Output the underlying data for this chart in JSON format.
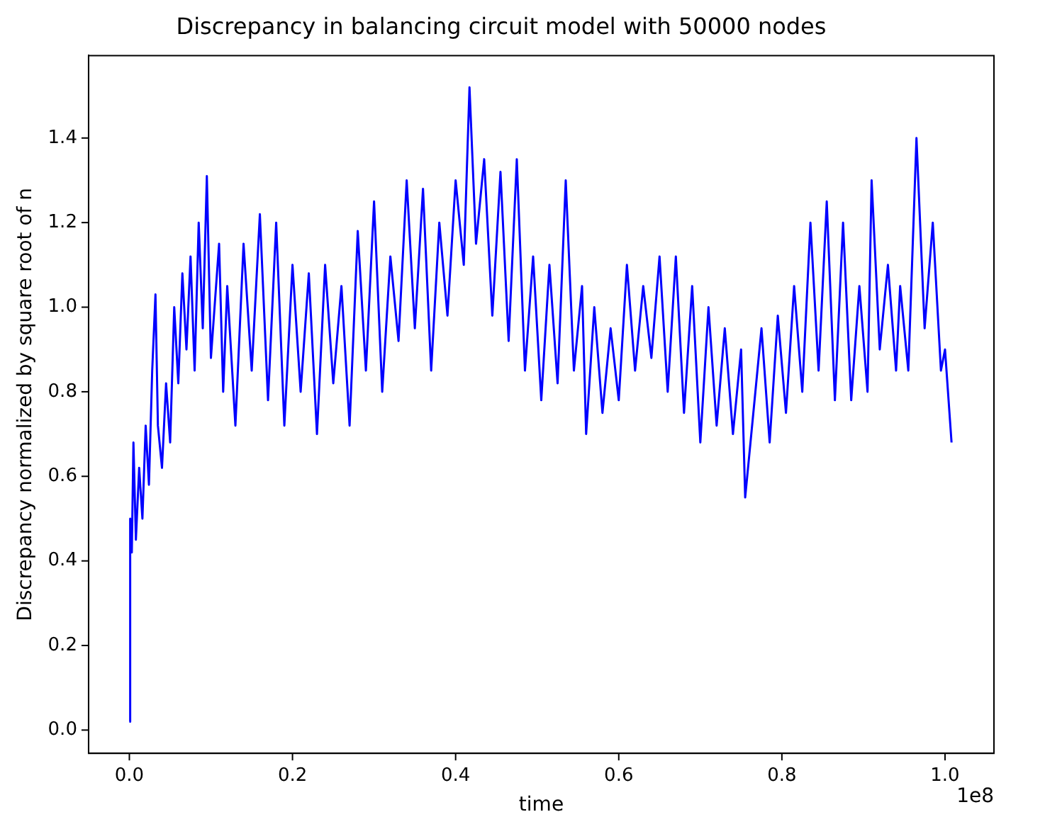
{
  "chart_data": {
    "type": "line",
    "title": "Discrepancy in balancing circuit model with 50000 nodes",
    "xlabel": "time",
    "ylabel": "Discrepancy normalized by square root of n",
    "annotations": [
      "1e8"
    ],
    "x": [
      0,
      0.001,
      0.003,
      0.005,
      0.008,
      0.012,
      0.016,
      0.02,
      0.024,
      0.028,
      0.032,
      0.035,
      0.04,
      0.045,
      0.05,
      0.055,
      0.06,
      0.065,
      0.07,
      0.075,
      0.08,
      0.085,
      0.09,
      0.095,
      0.1,
      0.11,
      0.115,
      0.12,
      0.13,
      0.14,
      0.15,
      0.16,
      0.17,
      0.18,
      0.19,
      0.2,
      0.21,
      0.22,
      0.23,
      0.24,
      0.25,
      0.26,
      0.27,
      0.28,
      0.29,
      0.3,
      0.31,
      0.32,
      0.33,
      0.34,
      0.35,
      0.36,
      0.37,
      0.38,
      0.39,
      0.4,
      0.41,
      0.417,
      0.425,
      0.435,
      0.445,
      0.455,
      0.465,
      0.475,
      0.485,
      0.495,
      0.505,
      0.515,
      0.525,
      0.535,
      0.545,
      0.555,
      0.56,
      0.57,
      0.58,
      0.59,
      0.6,
      0.61,
      0.62,
      0.63,
      0.64,
      0.65,
      0.66,
      0.67,
      0.68,
      0.69,
      0.7,
      0.71,
      0.72,
      0.73,
      0.74,
      0.75,
      0.755,
      0.765,
      0.775,
      0.785,
      0.795,
      0.805,
      0.815,
      0.825,
      0.835,
      0.845,
      0.855,
      0.865,
      0.875,
      0.885,
      0.895,
      0.905,
      0.91,
      0.92,
      0.93,
      0.94,
      0.945,
      0.955,
      0.965,
      0.975,
      0.985,
      0.995,
      1.0,
      1.008
    ],
    "series": [
      {
        "color": "#0000ff",
        "values": [
          0.02,
          0.5,
          0.42,
          0.68,
          0.45,
          0.62,
          0.5,
          0.72,
          0.58,
          0.85,
          1.03,
          0.72,
          0.62,
          0.82,
          0.68,
          1.0,
          0.82,
          1.08,
          0.9,
          1.12,
          0.85,
          1.2,
          0.95,
          1.31,
          0.88,
          1.15,
          0.8,
          1.05,
          0.72,
          1.15,
          0.85,
          1.22,
          0.78,
          1.2,
          0.72,
          1.1,
          0.8,
          1.08,
          0.7,
          1.1,
          0.82,
          1.05,
          0.72,
          1.18,
          0.85,
          1.25,
          0.8,
          1.12,
          0.92,
          1.3,
          0.95,
          1.28,
          0.85,
          1.2,
          0.98,
          1.3,
          1.1,
          1.52,
          1.15,
          1.35,
          0.98,
          1.32,
          0.92,
          1.35,
          0.85,
          1.12,
          0.78,
          1.1,
          0.82,
          1.3,
          0.85,
          1.05,
          0.7,
          1.0,
          0.75,
          0.95,
          0.78,
          1.1,
          0.85,
          1.05,
          0.88,
          1.12,
          0.8,
          1.12,
          0.75,
          1.05,
          0.68,
          1.0,
          0.72,
          0.95,
          0.7,
          0.9,
          0.55,
          0.75,
          0.95,
          0.68,
          0.98,
          0.75,
          1.05,
          0.8,
          1.2,
          0.85,
          1.25,
          0.78,
          1.2,
          0.78,
          1.05,
          0.8,
          1.3,
          0.9,
          1.1,
          0.85,
          1.05,
          0.85,
          1.4,
          0.95,
          1.2,
          0.85,
          0.9,
          0.68
        ]
      }
    ],
    "xlim": [
      -0.05,
      1.06
    ],
    "xticks": [
      {
        "value": 0,
        "label": "0.0"
      },
      0.2,
      0.4,
      0.6,
      0.8,
      {
        "value": 1.0,
        "label": "1.0"
      }
    ],
    "ylim": [
      -0.055,
      1.595
    ],
    "yticks": [
      {
        "value": 0,
        "label": "0.0"
      },
      {
        "value": 0.2,
        "label": "0.2"
      },
      {
        "value": 0.4,
        "label": "0.4"
      },
      {
        "value": 0.6,
        "label": "0.6"
      },
      {
        "value": 0.8,
        "label": "0.8"
      },
      {
        "value": 1.0,
        "label": "1.0"
      },
      {
        "value": 1.2,
        "label": "1.2"
      },
      {
        "value": 1.4,
        "label": "1.4"
      }
    ],
    "grid": false,
    "legend": false,
    "marker": "none",
    "line_style": "solid"
  }
}
